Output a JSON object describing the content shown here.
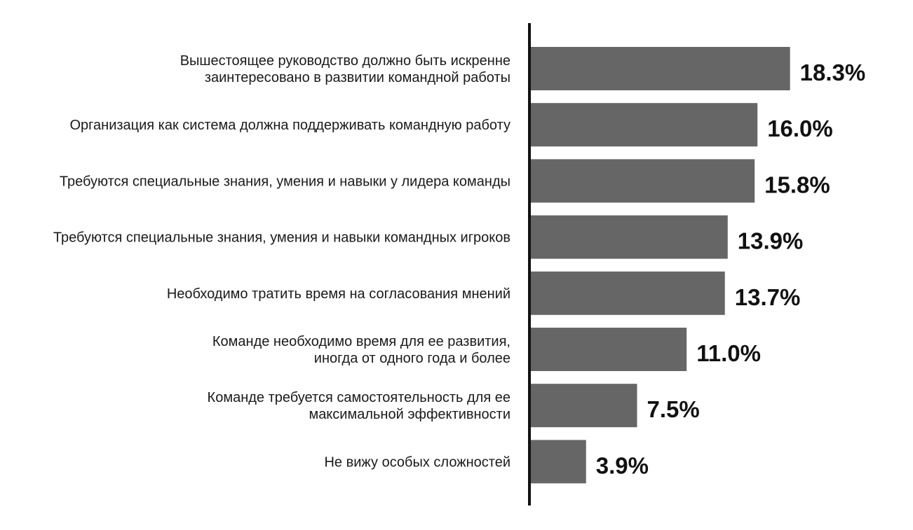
{
  "chart_data": {
    "type": "bar",
    "orientation": "horizontal",
    "categories": [
      [
        "Вышестоящее руководство должно быть искренне",
        "заинтересовано в развитии командной работы"
      ],
      [
        "Организация как система должна поддерживать командную работу"
      ],
      [
        "Требуются специальные знания, умения и навыки у лидера команды"
      ],
      [
        "Требуются специальные знания, умения и навыки командных игроков"
      ],
      [
        "Необходимо тратить время на согласования мнений"
      ],
      [
        "Команде необходимо время для ее развития,",
        "иногда от одного года и более"
      ],
      [
        "Команде требуется самостоятельность для ее",
        "максимальной эффективности"
      ],
      [
        "Не вижу особых сложностей"
      ]
    ],
    "values": [
      18.3,
      16.0,
      15.8,
      13.9,
      13.7,
      11.0,
      7.5,
      3.9
    ],
    "value_labels": [
      "18.3%",
      "16.0%",
      "15.8%",
      "13.9%",
      "13.7%",
      "11.0%",
      "7.5%",
      "3.9%"
    ],
    "xlim": [
      0,
      20
    ],
    "grid": false,
    "legend": "none",
    "colors": {
      "bar": "#666666",
      "axis": "#111111"
    }
  }
}
